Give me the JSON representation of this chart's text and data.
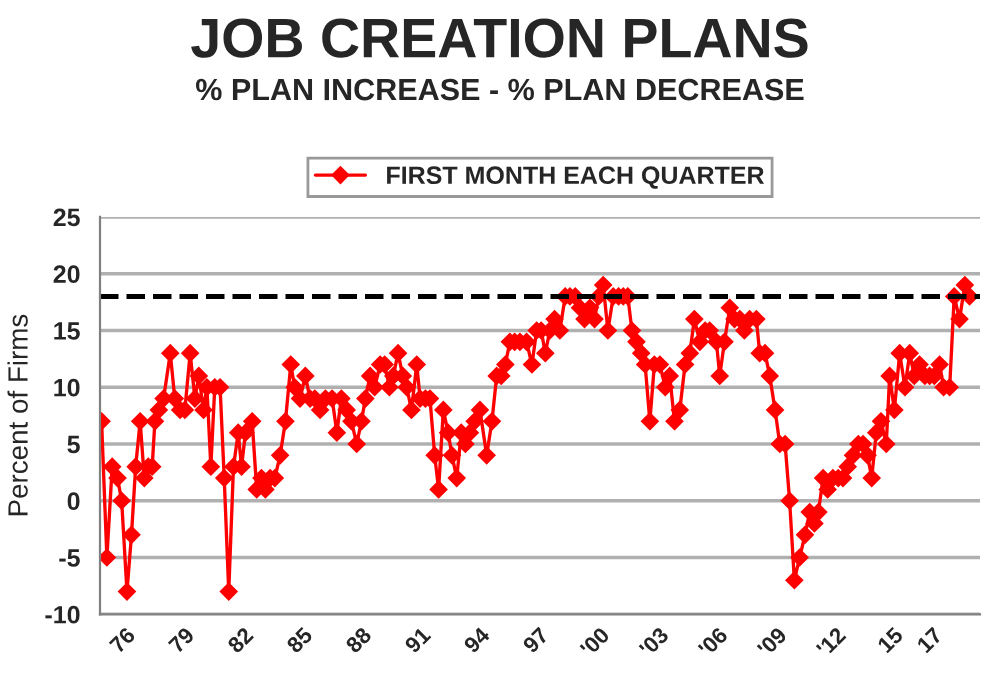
{
  "chart_data": {
    "type": "line",
    "title": "JOB CREATION PLANS",
    "subtitle": "% PLAN INCREASE - % PLAN DECREASE",
    "ylabel": "Percent of Firms",
    "x": [
      1974.88,
      1975.15,
      1975.42,
      1975.69,
      1975.9,
      1976.17,
      1976.4,
      1976.61,
      1976.84,
      1977.05,
      1977.25,
      1977.45,
      1977.59,
      1977.79,
      1978.03,
      1978.37,
      1978.6,
      1978.87,
      1979.11,
      1979.38,
      1979.62,
      1979.82,
      1980.06,
      1980.23,
      1980.43,
      1980.63,
      1980.9,
      1981.11,
      1981.34,
      1981.58,
      1981.82,
      1981.99,
      1982.19,
      1982.53,
      1982.76,
      1983.0,
      1983.2,
      1983.44,
      1983.68,
      1983.95,
      1984.22,
      1984.49,
      1984.69,
      1984.96,
      1985.23,
      1985.47,
      1985.71,
      1985.98,
      1986.25,
      1986.59,
      1986.83,
      1987.06,
      1987.33,
      1987.57,
      1987.84,
      1988.08,
      1988.28,
      1988.52,
      1988.75,
      1989.03,
      1989.26,
      1989.5,
      1989.7,
      1989.94,
      1990.18,
      1990.38,
      1990.62,
      1990.89,
      1991.06,
      1991.33,
      1991.56,
      1991.8,
      1992.0,
      1992.24,
      1992.48,
      1992.68,
      1992.92,
      1993.15,
      1993.36,
      1993.59,
      1993.83,
      1994.1,
      1994.44,
      1994.71,
      1994.95,
      1995.18,
      1995.39,
      1995.62,
      1995.86,
      1996.13,
      1996.47,
      1996.74,
      1996.98,
      1997.21,
      1997.42,
      1997.65,
      1997.89,
      1998.16,
      1998.43,
      1998.67,
      1998.94,
      1999.18,
      1999.41,
      1999.69,
      1999.92,
      2000.13,
      2000.36,
      2000.6,
      2000.87,
      2001.14,
      2001.38,
      2001.61,
      2001.82,
      2002.05,
      2002.29,
      2002.49,
      2002.73,
      2002.96,
      2003.24,
      2003.51,
      2003.74,
      2003.98,
      2004.25,
      2004.52,
      2004.76,
      2004.99,
      2005.27,
      2005.54,
      2005.77,
      2006.11,
      2006.28,
      2006.52,
      2006.79,
      2007.03,
      2007.3,
      2007.53,
      2007.8,
      2008.14,
      2008.31,
      2008.58,
      2008.82,
      2009.09,
      2009.33,
      2009.6,
      2009.83,
      2010.07,
      2010.34,
      2010.61,
      2010.85,
      2011.09,
      2011.29,
      2011.53,
      2011.76,
      2012.03,
      2012.3,
      2012.54,
      2012.78,
      2013.05,
      2013.32,
      2013.56,
      2013.79,
      2014.0,
      2014.23,
      2014.47,
      2014.74,
      2014.91,
      2015.15,
      2015.42,
      2015.69,
      2015.93,
      2016.16,
      2016.43,
      2016.7,
      2016.94,
      2017.18,
      2017.45,
      2017.65,
      2017.96,
      2018.19,
      2018.46,
      2018.73,
      2018.97
    ],
    "series": [
      {
        "name": "FIRST MONTH EACH QUARTER",
        "color": "#ff0000",
        "values": [
          7,
          -5,
          3,
          2,
          0,
          -8,
          -3,
          3,
          7,
          2,
          3,
          3,
          7,
          8,
          9,
          13,
          9,
          8,
          8,
          13,
          9,
          11,
          8,
          10,
          3,
          10,
          10,
          2,
          -8,
          3,
          6,
          3,
          6,
          7,
          1,
          2,
          1,
          2,
          2,
          4,
          7,
          12,
          10,
          9,
          11,
          9,
          9,
          8,
          9,
          9,
          6,
          9,
          8,
          7,
          5,
          7,
          9,
          11,
          10,
          12,
          12,
          10,
          11,
          13,
          11,
          10,
          8,
          12,
          9,
          9,
          9,
          4,
          1,
          8,
          6,
          4,
          2,
          6,
          5,
          6,
          7,
          8,
          4,
          7,
          11,
          11,
          12,
          14,
          14,
          14,
          14,
          12,
          15,
          15,
          13,
          15,
          16,
          15,
          18,
          18,
          18,
          17,
          16,
          17,
          16,
          18,
          19,
          15,
          18,
          18,
          18,
          18,
          15,
          14,
          13,
          12,
          7,
          12,
          12,
          10,
          11,
          7,
          8,
          12,
          13,
          16,
          14,
          15,
          15,
          14,
          11,
          14,
          17,
          16,
          16,
          15,
          16,
          16,
          13,
          13,
          11,
          8,
          5,
          5,
          0,
          -7,
          -5,
          -3,
          -1,
          -2,
          -1,
          2,
          1,
          2,
          2,
          2,
          3,
          4,
          5,
          5,
          4,
          2,
          6,
          7,
          5,
          11,
          8,
          13,
          10,
          13,
          11,
          12,
          11,
          11,
          11,
          12,
          10,
          10,
          18,
          16,
          19,
          18
        ]
      }
    ],
    "xlim": [
      1974.8,
      2019.5
    ],
    "xticks": [
      {
        "value": 1976,
        "label": "76"
      },
      {
        "value": 1979,
        "label": "79"
      },
      {
        "value": 1982,
        "label": "82"
      },
      {
        "value": 1985,
        "label": "85"
      },
      {
        "value": 1988,
        "label": "88"
      },
      {
        "value": 1991,
        "label": "91"
      },
      {
        "value": 1994,
        "label": "94"
      },
      {
        "value": 1997,
        "label": "97"
      },
      {
        "value": 2000,
        "label": "'00"
      },
      {
        "value": 2003,
        "label": "'03"
      },
      {
        "value": 2006,
        "label": "'06"
      },
      {
        "value": 2009,
        "label": "'09"
      },
      {
        "value": 2012,
        "label": "'12"
      },
      {
        "value": 2015,
        "label": "15"
      },
      {
        "value": 2017,
        "label": "17"
      }
    ],
    "ylim": [
      -10,
      25
    ],
    "yticks": [
      -10,
      -5,
      0,
      5,
      10,
      15,
      20,
      25
    ],
    "ref_lines": [
      {
        "axis": "y",
        "value": 18,
        "color": "#000000",
        "line_style": "dashed"
      }
    ],
    "grid": "y",
    "legend": "top",
    "marker": "diamond",
    "line_style": "solid"
  }
}
